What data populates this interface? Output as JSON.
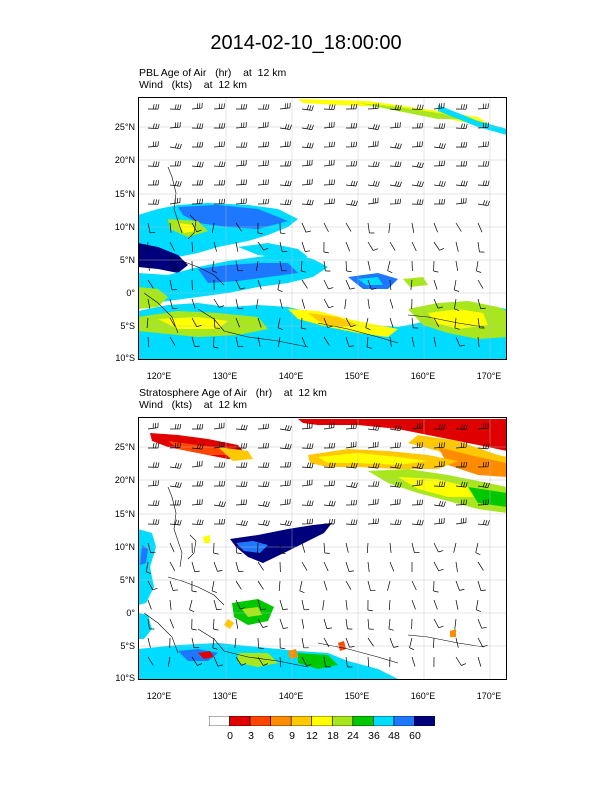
{
  "title": "2014-02-10_18:00:00",
  "panels": [
    {
      "field_line": "PBL Age of Air   (hr)    at  12 km",
      "wind_line": "Wind   (kts)    at  12 km"
    },
    {
      "field_line": "Stratosphere Age of Air   (hr)    at  12 km",
      "wind_line": "Wind   (kts)    at  12 km"
    }
  ],
  "lat_ticks": [
    "25°N",
    "20°N",
    "15°N",
    "10°N",
    "5°N",
    "0°",
    "5°S",
    "10°S"
  ],
  "lon_ticks": [
    "120°E",
    "130°E",
    "140°E",
    "150°E",
    "160°E",
    "170°E"
  ],
  "colorbar": {
    "labels": [
      "0",
      "3",
      "6",
      "9",
      "12",
      "18",
      "24",
      "36",
      "48",
      "60"
    ],
    "colors": [
      "#ffffff",
      "#e10000",
      "#ff4500",
      "#ff8c00",
      "#ffc800",
      "#ffff00",
      "#a8e61e",
      "#00c800",
      "#00dcff",
      "#1e78ff",
      "#00007d"
    ]
  }
}
